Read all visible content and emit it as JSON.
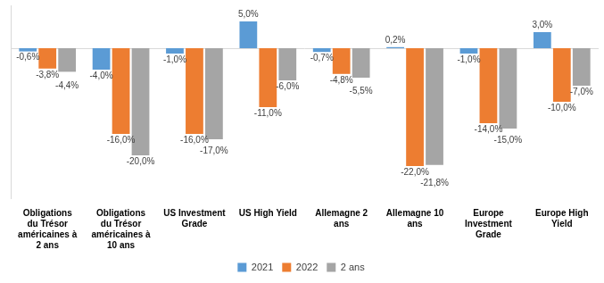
{
  "chart_data": {
    "type": "bar",
    "categories": [
      "Obligations du Trésor américaines à 2 ans",
      "Obligations du Trésor américaines à 10 ans",
      "US Investment Grade",
      "US High Yield",
      "Allemagne 2 ans",
      "Allemagne 10 ans",
      "Europe Investment Grade",
      "Europe High Yield"
    ],
    "series": [
      {
        "name": "2021",
        "color": "#5b9bd5",
        "values": [
          -0.6,
          -4.0,
          -1.0,
          5.0,
          -0.7,
          0.2,
          -1.0,
          3.0
        ],
        "value_labels": [
          "-0,6%",
          "-4,0%",
          "-1,0%",
          "5,0%",
          "-0,7%",
          "0,2%",
          "-1,0%",
          "3,0%"
        ]
      },
      {
        "name": "2022",
        "color": "#ed7d31",
        "values": [
          -3.8,
          -16.0,
          -16.0,
          -11.0,
          -4.8,
          -22.0,
          -14.0,
          -10.0
        ],
        "value_labels": [
          "-3,8%",
          "-16,0%",
          "-16,0%",
          "-11,0%",
          "-4,8%",
          "-22,0%",
          "-14,0%",
          "-10,0%"
        ]
      },
      {
        "name": "2 ans",
        "color": "#a5a5a5",
        "values": [
          -4.4,
          -20.0,
          -17.0,
          -6.0,
          -5.5,
          -21.8,
          -15.0,
          -7.0
        ],
        "value_labels": [
          "-4,4%",
          "-20,0%",
          "-17,0%",
          "-6,0%",
          "-5,5%",
          "-21,8%",
          "-15,0%",
          "-7,0%"
        ]
      }
    ],
    "ylim": [
      -28,
      8
    ],
    "grid": false,
    "legend": "bottom",
    "data_labels": true,
    "tick_labels": "x"
  }
}
